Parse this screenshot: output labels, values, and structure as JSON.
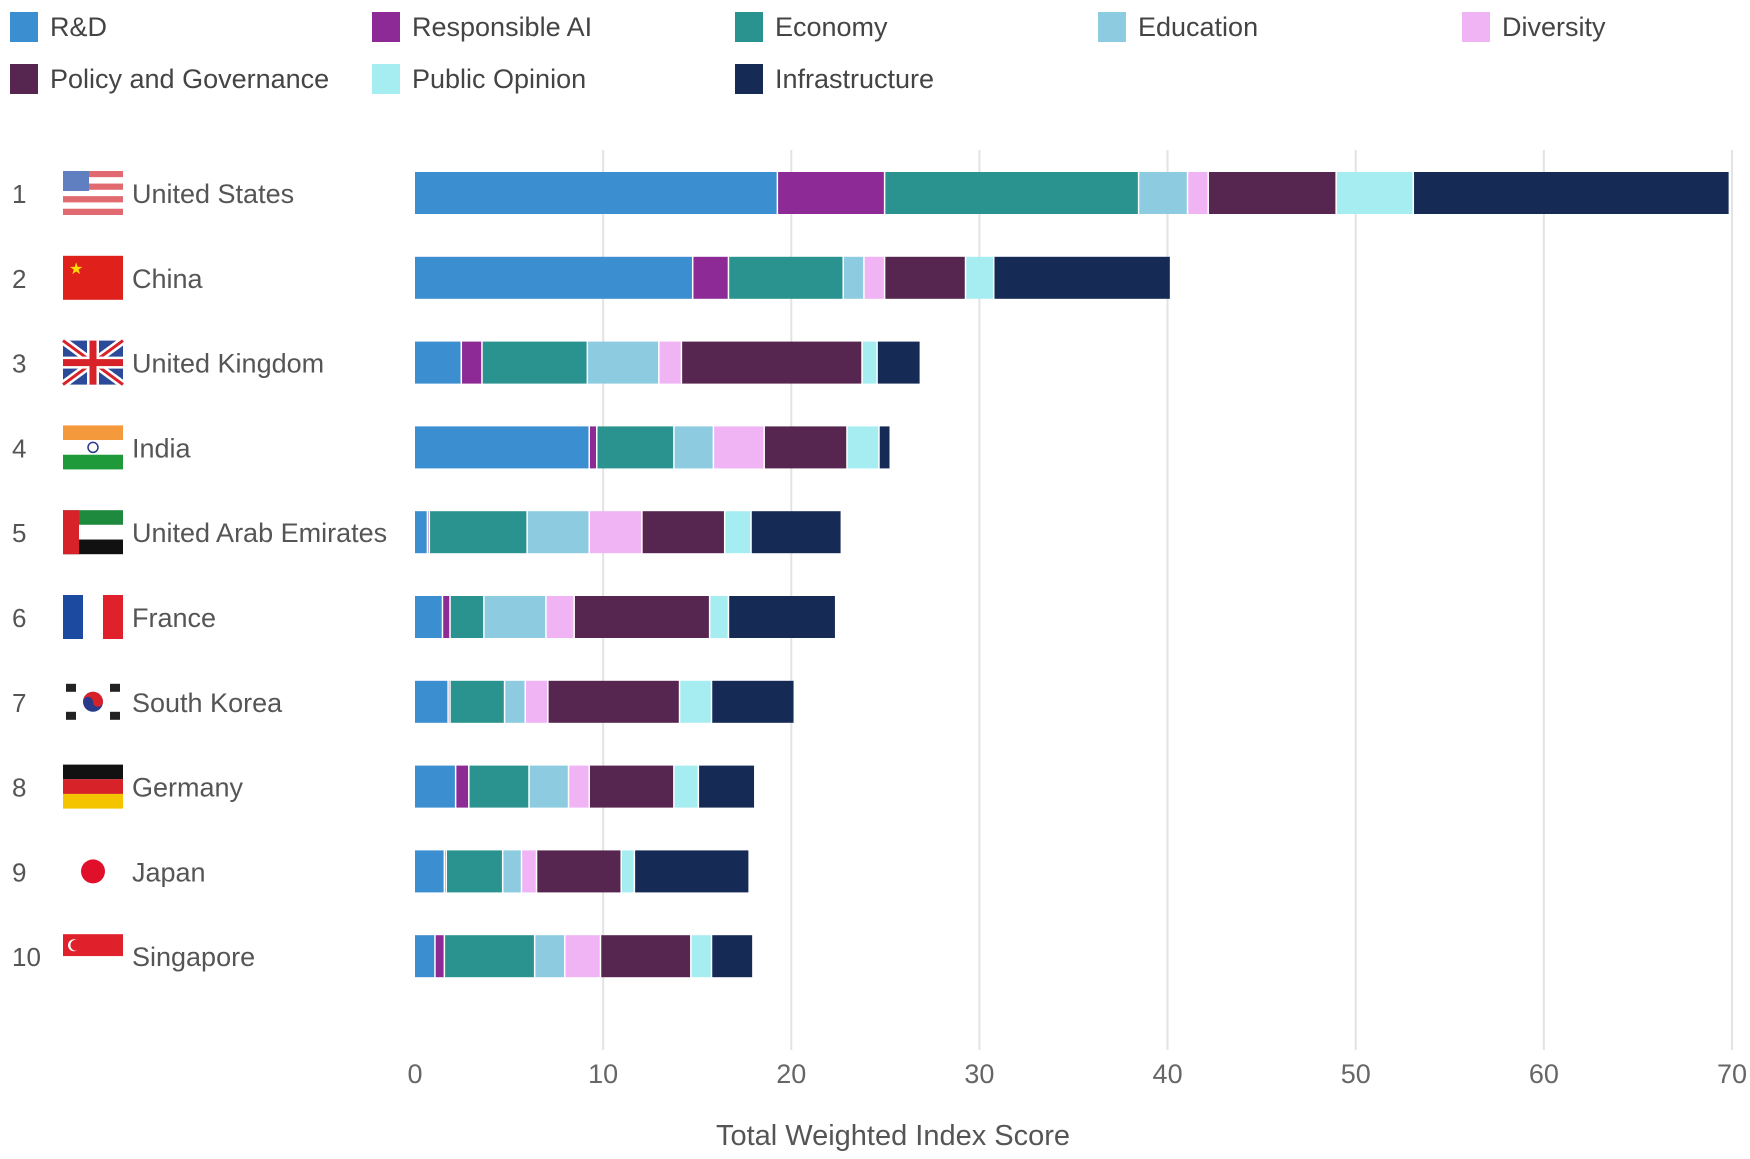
{
  "chart_data": {
    "type": "bar",
    "orientation": "horizontal",
    "stacked": true,
    "xlabel": "Total Weighted Index Score",
    "xlim": [
      0,
      70
    ],
    "xticks": [
      "0",
      "10",
      "20",
      "30",
      "40",
      "50",
      "60",
      "70"
    ],
    "grid": true,
    "legend_position": "top",
    "series": [
      {
        "name": "R&D",
        "color": "#3b8ecf",
        "values": [
          19.3,
          14.8,
          2.5,
          9.3,
          0.7,
          1.5,
          1.8,
          2.2,
          1.6,
          1.1
        ]
      },
      {
        "name": "Responsible AI",
        "color": "#8e2a96",
        "values": [
          5.7,
          1.9,
          1.1,
          0.4,
          0.1,
          0.4,
          0.1,
          0.7,
          0.1,
          0.5
        ]
      },
      {
        "name": "Economy",
        "color": "#2a9390",
        "values": [
          13.5,
          6.1,
          5.6,
          4.1,
          5.2,
          1.8,
          2.9,
          3.2,
          3.0,
          4.8
        ]
      },
      {
        "name": "Education",
        "color": "#8ccbe0",
        "values": [
          2.6,
          1.1,
          3.8,
          2.1,
          3.3,
          3.3,
          1.1,
          2.1,
          1.0,
          1.6
        ]
      },
      {
        "name": "Diversity",
        "color": "#f0b4f4",
        "values": [
          1.1,
          1.1,
          1.2,
          2.7,
          2.8,
          1.5,
          1.2,
          1.1,
          0.8,
          1.9
        ]
      },
      {
        "name": "Policy and Governance",
        "color": "#562550",
        "values": [
          6.8,
          4.3,
          9.6,
          4.4,
          4.4,
          7.2,
          7.0,
          4.5,
          4.5,
          4.8
        ]
      },
      {
        "name": "Public Opinion",
        "color": "#a6edf2",
        "values": [
          4.1,
          1.5,
          0.8,
          1.7,
          1.4,
          1.0,
          1.7,
          1.3,
          0.7,
          1.1
        ]
      },
      {
        "name": "Infrastructure",
        "color": "#162a56",
        "values": [
          16.8,
          9.4,
          2.3,
          0.6,
          4.8,
          5.7,
          4.4,
          3.0,
          6.1,
          2.2
        ]
      }
    ],
    "categories": [
      {
        "rank": "1",
        "name": "United States",
        "flag": "us-flag"
      },
      {
        "rank": "2",
        "name": "China",
        "flag": "china-flag"
      },
      {
        "rank": "3",
        "name": "United Kingdom",
        "flag": "uk-flag"
      },
      {
        "rank": "4",
        "name": "India",
        "flag": "india-flag"
      },
      {
        "rank": "5",
        "name": "United Arab Emirates",
        "flag": "uae-flag"
      },
      {
        "rank": "6",
        "name": "France",
        "flag": "france-flag"
      },
      {
        "rank": "7",
        "name": "South Korea",
        "flag": "south-korea-flag"
      },
      {
        "rank": "8",
        "name": "Germany",
        "flag": "germany-flag"
      },
      {
        "rank": "9",
        "name": "Japan",
        "flag": "japan-flag"
      },
      {
        "rank": "10",
        "name": "Singapore",
        "flag": "singapore-flag"
      }
    ]
  }
}
